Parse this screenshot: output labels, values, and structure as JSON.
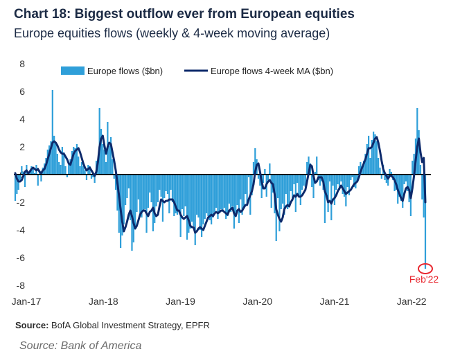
{
  "title": "Chart 18: Biggest outflow ever from European equities",
  "subtitle": "Europe equities flows (weekly & 4-week moving average)",
  "source": {
    "label": "Source:",
    "text": "BofA Global Investment Strategy, EPFR"
  },
  "footer_source": "Source: Bank of America",
  "colors": {
    "bars": "#2f9fd9",
    "ma_line": "#0d2a6b",
    "zero_line": "#000000",
    "highlight": "#e8272f",
    "title": "#1b2a44"
  },
  "chart_data": {
    "type": "bar",
    "title": "Chart 18: Biggest outflow ever from European equities",
    "subtitle": "Europe equities flows (weekly & 4-week moving average)",
    "xlabel": "",
    "ylabel": "",
    "ylim": [
      -8,
      8
    ],
    "yticks": [
      8,
      6,
      4,
      2,
      0,
      -2,
      -4,
      -6,
      -8
    ],
    "ytick_labels": [
      "8",
      "6",
      "4",
      "2",
      "0",
      "-2",
      "-4",
      "-6",
      "-8"
    ],
    "x_start": 2017.0,
    "x_end": 2022.16,
    "xticks": [
      {
        "value": 2017.0,
        "label": "Jan-17"
      },
      {
        "value": 2018.0,
        "label": "Jan-18"
      },
      {
        "value": 2019.0,
        "label": "Jan-19"
      },
      {
        "value": 2020.0,
        "label": "Jan-20"
      },
      {
        "value": 2021.0,
        "label": "Jan-21"
      },
      {
        "value": 2022.0,
        "label": "Jan-22"
      }
    ],
    "x_start_label": "Jan-17",
    "x_end_label": "Feb-22",
    "frequency": "weekly",
    "grid": false,
    "legend_position": "top",
    "legend": [
      {
        "name": "Europe flows ($bn)",
        "type": "bar"
      },
      {
        "name": "Europe flows 4-week MA ($bn)",
        "type": "line"
      }
    ],
    "series": [
      {
        "name": "Europe flows ($bn)",
        "type": "bar",
        "values": [
          -1.9,
          -1.4,
          -1.1,
          -0.4,
          0.6,
          0.2,
          -0.9,
          0.7,
          0.0,
          0.3,
          0.6,
          0.4,
          0.1,
          0.7,
          -0.8,
          0.3,
          -0.5,
          0.5,
          0.8,
          1.2,
          1.8,
          2.1,
          2.4,
          6.1,
          2.8,
          2.3,
          1.5,
          0.9,
          0.7,
          2.0,
          1.6,
          0.6,
          -0.2,
          0.8,
          1.1,
          1.7,
          2.0,
          1.9,
          2.2,
          1.3,
          0.6,
          0.9,
          0.6,
          0.3,
          -0.4,
          0.7,
          0.6,
          -0.3,
          -0.2,
          -0.6,
          1.0,
          0.8,
          4.8,
          3.3,
          2.2,
          1.8,
          0.9,
          3.8,
          2.1,
          2.7,
          1.1,
          -0.3,
          -1.1,
          -2.6,
          -4.2,
          -5.3,
          -4.4,
          -3.6,
          -2.2,
          -1.7,
          -1.0,
          -3.3,
          -5.5,
          -4.9,
          -3.8,
          -2.7,
          -1.8,
          -3.0,
          -3.1,
          -2.6,
          -2.5,
          -4.2,
          -2.4,
          -1.3,
          -2.0,
          -4.1,
          -3.5,
          -2.3,
          -2.0,
          -1.1,
          -1.6,
          -3.4,
          -1.7,
          -1.2,
          -1.4,
          -2.8,
          -1.1,
          -2.0,
          -3.0,
          -2.8,
          -2.9,
          -2.6,
          -4.5,
          -2.5,
          -3.0,
          -2.3,
          -4.7,
          -4.2,
          -3.9,
          -3.4,
          -3.7,
          -5.1,
          -2.9,
          -3.1,
          -4.0,
          -4.5,
          -3.6,
          -3.2,
          -2.8,
          -3.0,
          -3.3,
          -3.6,
          -3.1,
          -2.7,
          -2.4,
          -3.2,
          -2.8,
          -2.5,
          -2.6,
          -2.4,
          -3.2,
          -3.0,
          -2.1,
          -2.7,
          -2.3,
          -3.9,
          -3.0,
          -2.2,
          -3.5,
          -1.8,
          -2.9,
          -2.4,
          -1.4,
          -2.1,
          -0.2,
          -2.9,
          -1.5,
          0.9,
          1.9,
          1.1,
          -0.3,
          -0.8,
          -1.7,
          -0.6,
          0.4,
          -1.6,
          -0.4,
          0.8,
          -2.4,
          -1.3,
          -2.8,
          -4.8,
          -1.7,
          -4.1,
          -2.5,
          -2.1,
          -2.9,
          -1.4,
          -2.5,
          -2.2,
          -1.2,
          -1.9,
          -0.7,
          -2.7,
          -0.6,
          -1.6,
          -2.2,
          -1.1,
          -0.8,
          -0.9,
          0.9,
          1.3,
          0.8,
          -0.9,
          -1.7,
          0.2,
          1.3,
          -0.4,
          -0.8,
          -0.5,
          -1.1,
          -3.5,
          -1.4,
          -2.7,
          -0.5,
          -3.3,
          -0.8,
          -2.2,
          -1.1,
          -0.7,
          -1.1,
          -0.5,
          -1.4,
          -1.6,
          -2.3,
          -0.9,
          -1.5,
          -0.4,
          -0.2,
          -0.9,
          -1.0,
          -0.5,
          0.6,
          0.9,
          0.6,
          1.0,
          1.5,
          2.2,
          2.8,
          1.2,
          2.5,
          3.1,
          2.9,
          2.4,
          1.2,
          0.5,
          -0.3,
          0.7,
          -0.4,
          -0.6,
          -0.8,
          0.4,
          0.2,
          -0.4,
          -1.2,
          -1.1,
          -2.1,
          -1.6,
          -1.9,
          -2.4,
          -0.7,
          -0.5,
          -1.2,
          -2.0,
          -3.0,
          1.0,
          1.5,
          2.6,
          4.8,
          3.2,
          0.7,
          -1.8,
          -3.1,
          -6.8
        ]
      },
      {
        "name": "Europe flows 4-week MA ($bn)",
        "type": "line",
        "values": [
          0.1,
          -0.3,
          -0.5,
          -0.5,
          -0.4,
          -0.1,
          0.2,
          0.3,
          0.1,
          0.2,
          0.4,
          0.5,
          0.4,
          0.3,
          0.4,
          0.2,
          0.1,
          0.3,
          0.4,
          0.7,
          1.1,
          1.5,
          1.9,
          2.3,
          2.4,
          2.3,
          2.1,
          1.8,
          1.6,
          1.5,
          1.5,
          1.3,
          1.1,
          0.8,
          0.7,
          1.1,
          1.5,
          1.7,
          1.8,
          1.9,
          1.6,
          1.2,
          0.8,
          0.5,
          0.3,
          0.4,
          0.5,
          0.3,
          0.1,
          -0.1,
          0.2,
          0.9,
          2.0,
          2.6,
          2.8,
          2.1,
          1.5,
          2.0,
          2.3,
          2.2,
          1.6,
          1.0,
          0.3,
          -0.6,
          -1.5,
          -2.5,
          -3.4,
          -4.1,
          -3.8,
          -3.4,
          -2.9,
          -2.6,
          -3.0,
          -3.5,
          -3.9,
          -3.7,
          -3.3,
          -2.9,
          -2.7,
          -2.6,
          -2.6,
          -2.8,
          -3.0,
          -2.7,
          -2.6,
          -2.4,
          -2.8,
          -3.0,
          -2.9,
          -2.3,
          -1.8,
          -1.9,
          -2.0,
          -1.9,
          -1.9,
          -1.8,
          -1.8,
          -1.8,
          -2.0,
          -2.3,
          -2.6,
          -2.6,
          -2.9,
          -3.1,
          -3.2,
          -3.1,
          -3.0,
          -3.3,
          -3.7,
          -3.8,
          -3.8,
          -4.2,
          -4.1,
          -3.9,
          -3.8,
          -3.9,
          -4.0,
          -3.7,
          -3.4,
          -3.1,
          -3.0,
          -2.9,
          -3.0,
          -2.8,
          -2.7,
          -2.8,
          -2.7,
          -2.6,
          -2.6,
          -2.7,
          -2.8,
          -2.9,
          -2.6,
          -2.5,
          -2.4,
          -2.8,
          -3.0,
          -2.6,
          -2.5,
          -2.7,
          -2.6,
          -2.4,
          -2.2,
          -2.2,
          -1.8,
          -1.5,
          -1.2,
          -0.7,
          0.2,
          0.7,
          0.8,
          0.2,
          -0.5,
          -1.0,
          -1.0,
          -0.7,
          -0.5,
          -0.4,
          -0.6,
          -0.7,
          -1.4,
          -2.5,
          -2.9,
          -3.2,
          -3.4,
          -3.1,
          -2.5,
          -2.3,
          -2.2,
          -2.3,
          -2.0,
          -1.8,
          -1.5,
          -1.6,
          -1.4,
          -1.6,
          -1.6,
          -1.5,
          -1.3,
          -1.1,
          -0.5,
          0.1,
          0.7,
          0.6,
          -0.1,
          -0.6,
          -0.5,
          -0.2,
          -0.2,
          -0.2,
          -0.5,
          -1.2,
          -1.5,
          -2.0,
          -1.9,
          -2.1,
          -1.8,
          -1.7,
          -1.5,
          -1.2,
          -1.0,
          -0.8,
          -1.0,
          -1.2,
          -1.4,
          -1.3,
          -1.2,
          -1.1,
          -0.9,
          -0.7,
          -0.6,
          -0.5,
          -0.2,
          0.2,
          0.5,
          0.8,
          1.1,
          1.5,
          1.9,
          1.9,
          2.0,
          2.3,
          2.6,
          2.7,
          2.3,
          1.7,
          1.0,
          0.4,
          0.1,
          -0.1,
          -0.3,
          -0.1,
          -0.1,
          -0.2,
          -0.4,
          -0.7,
          -1.1,
          -1.4,
          -1.7,
          -1.9,
          -1.4,
          -1.0,
          -0.9,
          -1.1,
          -1.7,
          -1.0,
          -0.1,
          1.0,
          2.0,
          2.6,
          1.6,
          0.9,
          1.2,
          -2.0
        ]
      }
    ],
    "annotations": [
      {
        "text": "Feb'22",
        "target": "latest value",
        "value": -6.8,
        "style": "red circle"
      }
    ]
  }
}
